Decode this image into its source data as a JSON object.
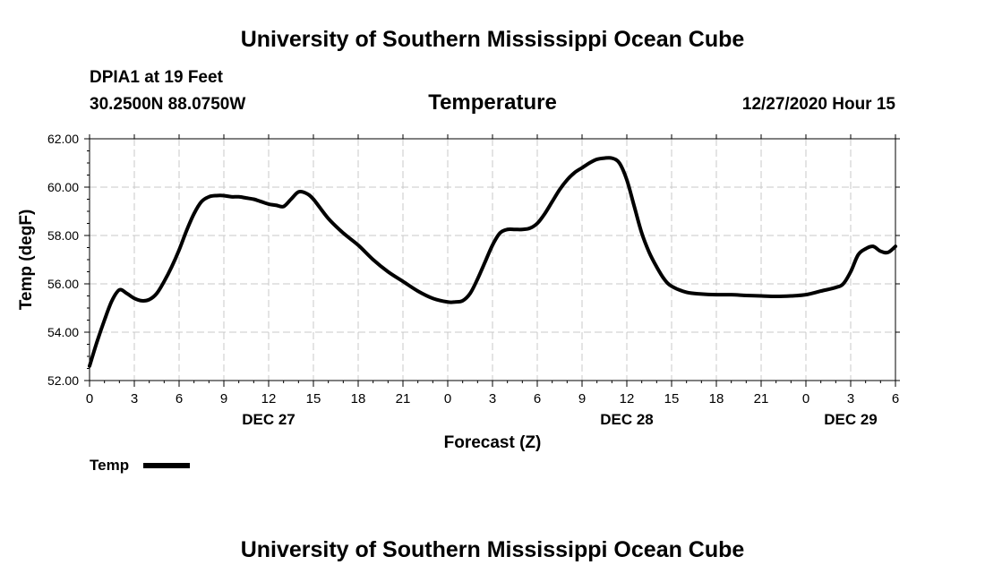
{
  "header": {
    "title_top": "University of Southern Mississippi Ocean Cube",
    "station": "DPIA1 at 19 Feet",
    "location": "30.2500N 88.0750W",
    "valid_time": "12/27/2020 Hour 15",
    "title_bottom": "University of Southern Mississippi Ocean Cube"
  },
  "chart_data": {
    "type": "line",
    "title": "Temperature",
    "xlabel": "Forecast (Z)",
    "ylabel": "Temp (degF)",
    "xlim": [
      0,
      54
    ],
    "ylim": [
      52,
      62
    ],
    "grid": true,
    "x_tick_labels": [
      "0",
      "3",
      "6",
      "9",
      "12",
      "15",
      "18",
      "21",
      "0",
      "3",
      "6",
      "9",
      "12",
      "15",
      "18",
      "21",
      "0",
      "3",
      "6"
    ],
    "date_labels": [
      {
        "label": "DEC 27",
        "hour": 12
      },
      {
        "label": "DEC 28",
        "hour": 36
      },
      {
        "label": "DEC 29",
        "hour": 51
      }
    ],
    "y_tick_labels": [
      "52.00",
      "54.00",
      "56.00",
      "58.00",
      "60.00",
      "62.00"
    ],
    "legend": {
      "label": "Temp",
      "placement": "bottom-left"
    },
    "series": [
      {
        "name": "Temp",
        "color": "#000000",
        "x": [
          0,
          0.5,
          1,
          1.5,
          2,
          2.5,
          3,
          3.5,
          4,
          4.5,
          5,
          5.5,
          6,
          6.5,
          7,
          7.5,
          8,
          8.5,
          9,
          9.5,
          10,
          10.5,
          11,
          11.5,
          12,
          12.5,
          13,
          13.5,
          14,
          14.5,
          15,
          16,
          17,
          18,
          19,
          20,
          21,
          22,
          23,
          24,
          24.5,
          25,
          25.5,
          26,
          26.5,
          27,
          27.5,
          28,
          28.5,
          29,
          29.5,
          30,
          30.5,
          31,
          31.5,
          32,
          32.5,
          33,
          33.5,
          34,
          34.5,
          35,
          35.5,
          36,
          36.5,
          37,
          37.5,
          38,
          38.5,
          39,
          40,
          41,
          42,
          43,
          44,
          45,
          46,
          47,
          48,
          49,
          50,
          50.5,
          51,
          51.5,
          52,
          52.5,
          53,
          53.5,
          54
        ],
        "values": [
          52.6,
          53.6,
          54.5,
          55.3,
          55.75,
          55.6,
          55.4,
          55.3,
          55.35,
          55.6,
          56.1,
          56.7,
          57.4,
          58.2,
          58.9,
          59.4,
          59.6,
          59.65,
          59.65,
          59.6,
          59.6,
          59.55,
          59.5,
          59.4,
          59.3,
          59.25,
          59.2,
          59.5,
          59.8,
          59.75,
          59.5,
          58.7,
          58.1,
          57.6,
          57.0,
          56.5,
          56.1,
          55.7,
          55.4,
          55.25,
          55.25,
          55.3,
          55.6,
          56.2,
          56.9,
          57.6,
          58.1,
          58.25,
          58.25,
          58.25,
          58.3,
          58.5,
          58.9,
          59.4,
          59.9,
          60.3,
          60.6,
          60.8,
          61.0,
          61.15,
          61.2,
          61.2,
          61.0,
          60.3,
          59.2,
          58.1,
          57.3,
          56.7,
          56.2,
          55.9,
          55.65,
          55.58,
          55.55,
          55.55,
          55.52,
          55.5,
          55.48,
          55.5,
          55.55,
          55.7,
          55.85,
          56.0,
          56.5,
          57.2,
          57.45,
          57.55,
          57.35,
          57.3,
          57.55
        ]
      }
    ]
  }
}
